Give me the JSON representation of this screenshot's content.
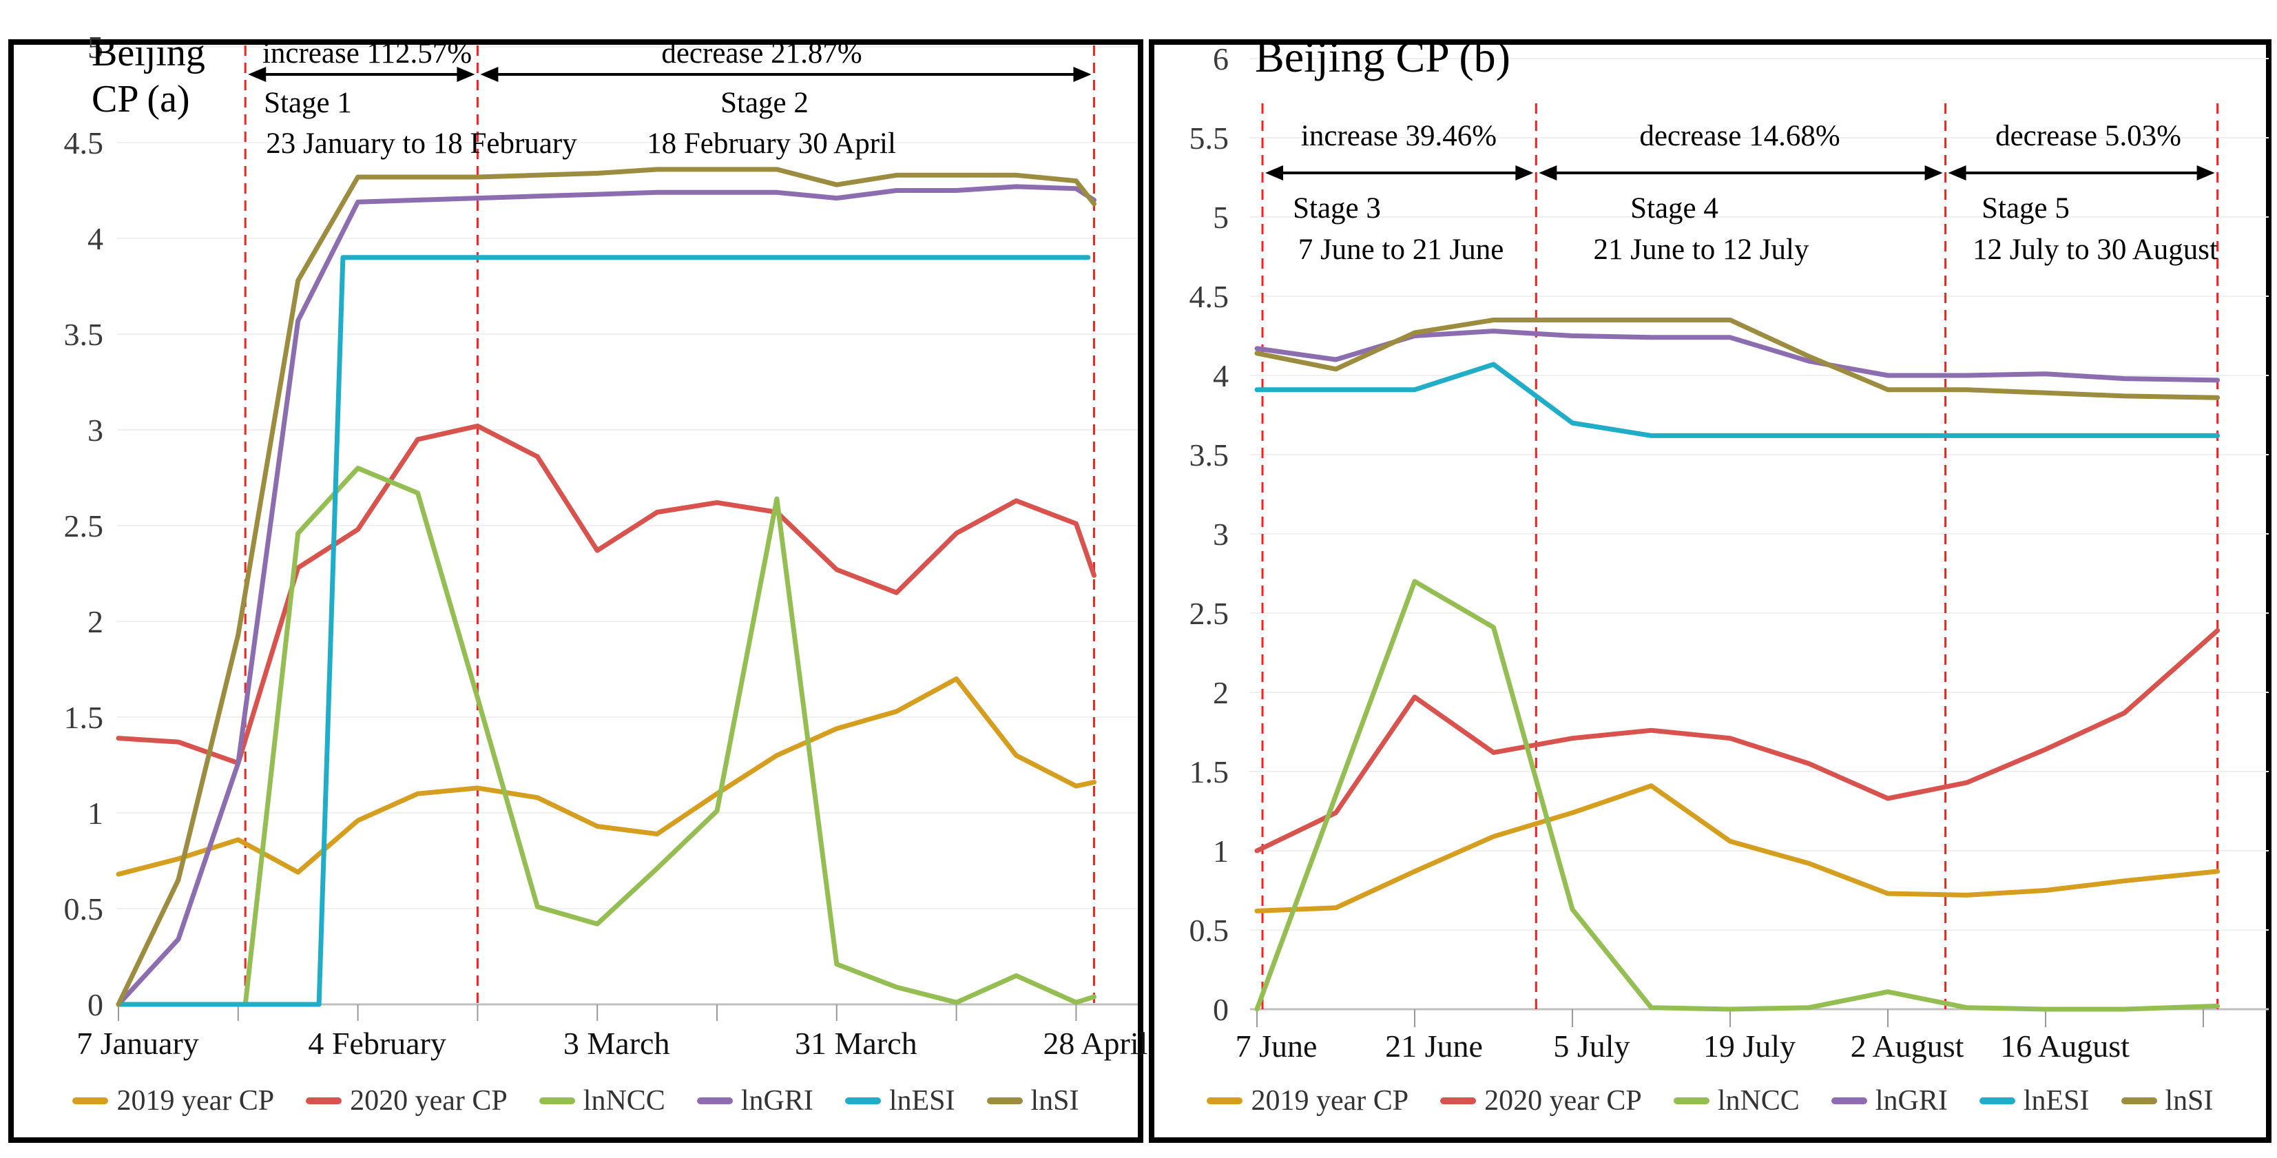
{
  "panels": {
    "a": {
      "title_text": "Beijing\nCP (a)"
    },
    "b": {
      "title_text": "Beijing CP (b)"
    }
  },
  "colors": {
    "cp2019": "#D69E1E",
    "cp2020": "#D9534E",
    "lnNCC": "#94BE51",
    "lnGRI": "#8C6DB0",
    "lnESI": "#1FADC8",
    "lnSI": "#9B8C40",
    "dashed_line": "#FA1F1F",
    "axis": "#BFBFBF",
    "gridline": "#F0F0F0",
    "tick": "#999999"
  },
  "chart_data": [
    {
      "id": "a",
      "type": "line",
      "title": "Beijing CP (a)",
      "x_axis": {
        "unit": "weeks since 7 January",
        "tick_weeks": [
          0,
          2,
          4,
          6,
          8,
          10,
          12,
          14,
          16
        ],
        "labels": [
          [
            "7 January",
            0
          ],
          [
            "4 February",
            4
          ],
          [
            "3 March",
            8
          ],
          [
            "31 March",
            12
          ],
          [
            "28 April",
            16
          ]
        ]
      },
      "y_axis": {
        "min": 0,
        "max": 5,
        "step": 0.5
      },
      "grid": true,
      "legend_position": "bottom",
      "dashed_line_weeks": [
        2.12,
        6,
        16.3
      ],
      "stage_annotations": [
        {
          "change": "increase 112.57%",
          "stage": "Stage 1",
          "period": "23 January to 18 February",
          "from_week": 2.12,
          "to_week": 6
        },
        {
          "change": "decrease 21.87%",
          "stage": "Stage 2",
          "period": "18 February 30 April",
          "from_week": 6,
          "to_week": 16.3
        }
      ],
      "series": [
        {
          "name": "2019 year CP",
          "color_key": "cp2019",
          "points": [
            [
              0,
              0.68
            ],
            [
              1,
              0.76
            ],
            [
              2,
              0.86
            ],
            [
              3,
              0.69
            ],
            [
              4,
              0.96
            ],
            [
              5,
              1.1
            ],
            [
              6,
              1.13
            ],
            [
              7,
              1.08
            ],
            [
              8,
              0.93
            ],
            [
              9,
              0.89
            ],
            [
              10,
              1.1
            ],
            [
              11,
              1.3
            ],
            [
              12,
              1.44
            ],
            [
              13,
              1.53
            ],
            [
              14,
              1.7
            ],
            [
              15,
              1.3
            ],
            [
              16,
              1.14
            ],
            [
              16.3,
              1.16
            ]
          ]
        },
        {
          "name": "2020 year CP",
          "color_key": "cp2020",
          "points": [
            [
              0,
              1.39
            ],
            [
              1,
              1.37
            ],
            [
              2,
              1.26
            ],
            [
              3,
              2.28
            ],
            [
              4,
              2.48
            ],
            [
              5,
              2.95
            ],
            [
              6,
              3.02
            ],
            [
              7,
              2.86
            ],
            [
              8,
              2.37
            ],
            [
              9,
              2.57
            ],
            [
              10,
              2.62
            ],
            [
              11,
              2.57
            ],
            [
              12,
              2.27
            ],
            [
              13,
              2.15
            ],
            [
              14,
              2.46
            ],
            [
              15,
              2.63
            ],
            [
              16,
              2.51
            ],
            [
              16.3,
              2.24
            ]
          ]
        },
        {
          "name": "lnNCC",
          "color_key": "lnNCC",
          "points": [
            [
              0,
              0
            ],
            [
              1,
              0
            ],
            [
              2,
              0
            ],
            [
              2.12,
              0
            ],
            [
              3,
              2.46
            ],
            [
              4,
              2.8
            ],
            [
              5,
              2.67
            ],
            [
              6,
              1.6
            ],
            [
              7,
              0.51
            ],
            [
              8,
              0.42
            ],
            [
              9,
              0.71
            ],
            [
              10,
              1.01
            ],
            [
              11,
              2.64
            ],
            [
              12,
              0.21
            ],
            [
              13,
              0.09
            ],
            [
              14,
              0.01
            ],
            [
              15,
              0.15
            ],
            [
              16,
              0.01
            ],
            [
              16.3,
              0.04
            ]
          ]
        },
        {
          "name": "lnGRI",
          "color_key": "lnGRI",
          "points": [
            [
              0,
              0
            ],
            [
              1,
              0.34
            ],
            [
              2,
              1.26
            ],
            [
              3,
              3.57
            ],
            [
              4,
              4.19
            ],
            [
              5,
              4.2
            ],
            [
              6,
              4.21
            ],
            [
              7,
              4.22
            ],
            [
              8,
              4.23
            ],
            [
              9,
              4.24
            ],
            [
              10,
              4.24
            ],
            [
              11,
              4.24
            ],
            [
              12,
              4.21
            ],
            [
              13,
              4.25
            ],
            [
              14,
              4.25
            ],
            [
              15,
              4.27
            ],
            [
              16,
              4.26
            ],
            [
              16.3,
              4.2
            ]
          ]
        },
        {
          "name": "lnESI",
          "color_key": "lnESI",
          "points": [
            [
              0,
              0
            ],
            [
              1,
              0
            ],
            [
              2,
              0
            ],
            [
              3,
              0
            ],
            [
              3.35,
              0
            ],
            [
              3.75,
              3.9
            ],
            [
              4,
              3.9
            ],
            [
              8,
              3.9
            ],
            [
              12,
              3.9
            ],
            [
              16,
              3.9
            ],
            [
              16.2,
              3.9
            ]
          ]
        },
        {
          "name": "lnSI",
          "color_key": "lnSI",
          "points": [
            [
              0,
              0
            ],
            [
              1,
              0.65
            ],
            [
              2,
              1.93
            ],
            [
              3,
              3.78
            ],
            [
              4,
              4.32
            ],
            [
              5,
              4.32
            ],
            [
              6,
              4.32
            ],
            [
              7,
              4.33
            ],
            [
              8,
              4.34
            ],
            [
              9,
              4.36
            ],
            [
              10,
              4.36
            ],
            [
              11,
              4.36
            ],
            [
              12,
              4.28
            ],
            [
              13,
              4.33
            ],
            [
              14,
              4.33
            ],
            [
              15,
              4.33
            ],
            [
              16,
              4.3
            ],
            [
              16.3,
              4.18
            ]
          ]
        }
      ]
    },
    {
      "id": "b",
      "type": "line",
      "title": "Beijing CP (b)",
      "x_axis": {
        "unit": "weeks since 7 June",
        "tick_weeks": [
          0,
          2,
          4,
          6,
          8,
          10,
          12
        ],
        "labels": [
          [
            "7 June",
            0
          ],
          [
            "21 June",
            2
          ],
          [
            "5 July",
            4
          ],
          [
            "19 July",
            6
          ],
          [
            "2 August",
            8
          ],
          [
            "16 August",
            10
          ]
        ]
      },
      "y_axis": {
        "min": 0,
        "max": 6,
        "step": 0.5
      },
      "grid": true,
      "legend_position": "bottom",
      "dashed_line_weeks": [
        0.07,
        3.54,
        8.73,
        12.18
      ],
      "stage_annotations": [
        {
          "change": "increase 39.46%",
          "stage": "Stage 3",
          "period": "7 June to 21 June",
          "from_week": 0.07,
          "to_week": 3.54
        },
        {
          "change": "decrease 14.68%",
          "stage": "Stage 4",
          "period": "21 June to 12 July",
          "from_week": 3.54,
          "to_week": 8.73
        },
        {
          "change": "decrease 5.03%",
          "stage": "Stage 5",
          "period": "12 July to 30 August",
          "from_week": 8.73,
          "to_week": 12.18
        }
      ],
      "series": [
        {
          "name": "2019 year CP",
          "color_key": "cp2019",
          "points": [
            [
              0,
              0.62
            ],
            [
              1,
              0.64
            ],
            [
              2,
              0.87
            ],
            [
              3,
              1.09
            ],
            [
              4,
              1.24
            ],
            [
              5,
              1.41
            ],
            [
              6,
              1.06
            ],
            [
              7,
              0.92
            ],
            [
              8,
              0.73
            ],
            [
              9,
              0.72
            ],
            [
              10,
              0.75
            ],
            [
              11,
              0.81
            ],
            [
              12.18,
              0.87
            ]
          ]
        },
        {
          "name": "2020 year CP",
          "color_key": "cp2020",
          "points": [
            [
              0,
              1.0
            ],
            [
              1,
              1.24
            ],
            [
              2,
              1.97
            ],
            [
              3,
              1.62
            ],
            [
              4,
              1.71
            ],
            [
              5,
              1.76
            ],
            [
              6,
              1.71
            ],
            [
              7,
              1.55
            ],
            [
              8,
              1.33
            ],
            [
              9,
              1.43
            ],
            [
              10,
              1.64
            ],
            [
              11,
              1.87
            ],
            [
              12.18,
              2.39
            ]
          ]
        },
        {
          "name": "lnNCC",
          "color_key": "lnNCC",
          "points": [
            [
              0,
              0
            ],
            [
              1,
              1.35
            ],
            [
              2,
              2.7
            ],
            [
              3,
              2.41
            ],
            [
              4,
              0.63
            ],
            [
              5,
              0.01
            ],
            [
              6,
              0
            ],
            [
              7,
              0.01
            ],
            [
              8,
              0.11
            ],
            [
              9,
              0.01
            ],
            [
              10,
              0
            ],
            [
              11,
              0
            ],
            [
              12.18,
              0.02
            ]
          ]
        },
        {
          "name": "lnGRI",
          "color_key": "lnGRI",
          "points": [
            [
              0,
              4.17
            ],
            [
              1,
              4.1
            ],
            [
              2,
              4.25
            ],
            [
              3,
              4.28
            ],
            [
              4,
              4.25
            ],
            [
              5,
              4.24
            ],
            [
              6,
              4.24
            ],
            [
              7,
              4.09
            ],
            [
              8,
              4.0
            ],
            [
              9,
              4.0
            ],
            [
              10,
              4.01
            ],
            [
              11,
              3.98
            ],
            [
              12.18,
              3.97
            ]
          ]
        },
        {
          "name": "lnESI",
          "color_key": "lnESI",
          "points": [
            [
              0,
              3.91
            ],
            [
              1,
              3.91
            ],
            [
              2,
              3.91
            ],
            [
              3,
              4.07
            ],
            [
              4,
              3.7
            ],
            [
              5,
              3.62
            ],
            [
              6,
              3.62
            ],
            [
              7,
              3.62
            ],
            [
              8,
              3.62
            ],
            [
              9,
              3.62
            ],
            [
              10,
              3.62
            ],
            [
              11,
              3.62
            ],
            [
              12.18,
              3.62
            ]
          ]
        },
        {
          "name": "lnSI",
          "color_key": "lnSI",
          "points": [
            [
              0,
              4.14
            ],
            [
              1,
              4.04
            ],
            [
              2,
              4.27
            ],
            [
              3,
              4.35
            ],
            [
              4,
              4.35
            ],
            [
              5,
              4.35
            ],
            [
              6,
              4.35
            ],
            [
              7,
              4.12
            ],
            [
              8,
              3.91
            ],
            [
              9,
              3.91
            ],
            [
              10,
              3.89
            ],
            [
              11,
              3.87
            ],
            [
              12.18,
              3.86
            ]
          ]
        }
      ]
    }
  ]
}
